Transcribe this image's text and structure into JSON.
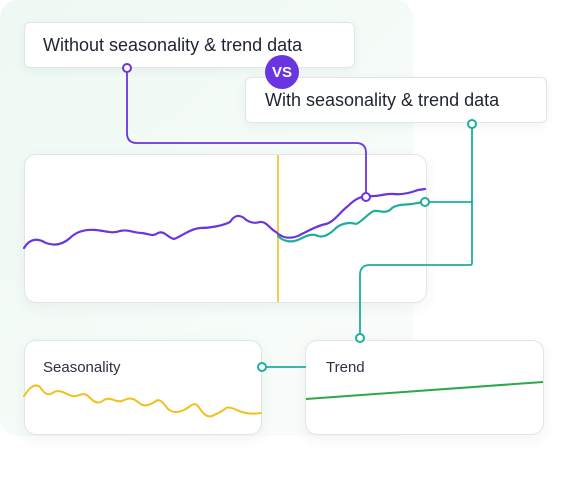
{
  "labels": {
    "without": "Without seasonality & trend data",
    "vs": "VS",
    "with": "With seasonality & trend data"
  },
  "cards": {
    "seasonality_title": "Seasonality",
    "trend_title": "Trend"
  },
  "colors": {
    "purple": "#6a35e0",
    "teal": "#1fae9a",
    "yellow": "#f0c020",
    "green": "#2ea84a"
  },
  "icons": [
    "connector-dot-icon"
  ]
}
